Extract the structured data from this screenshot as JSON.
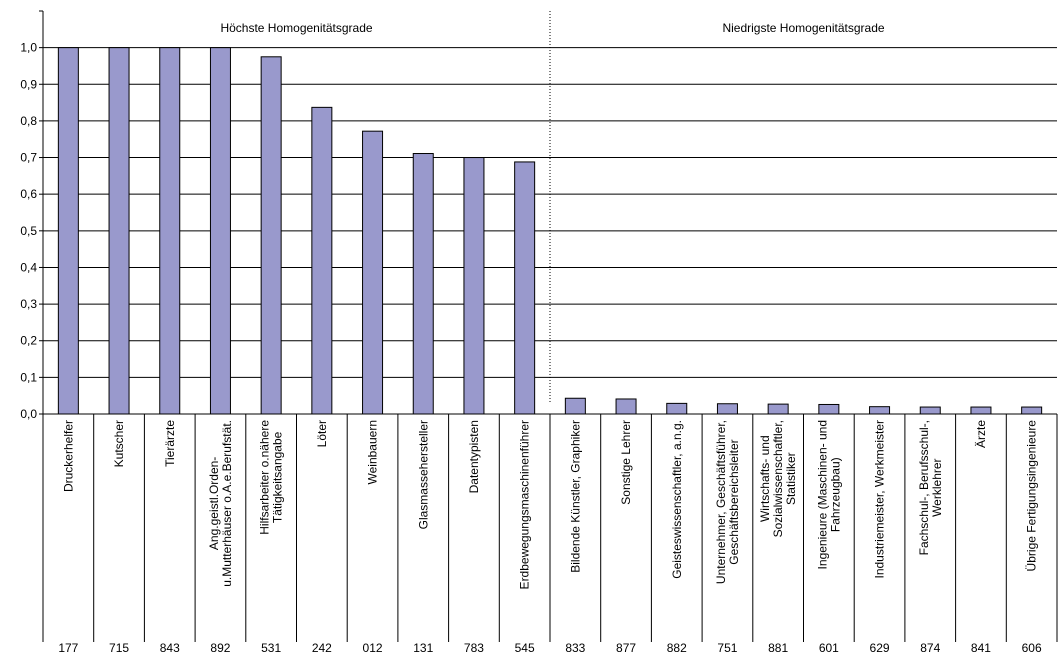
{
  "chart_data": {
    "type": "bar",
    "ylim": [
      0,
      1.1
    ],
    "yticks": [
      "0,0",
      "0,1",
      "0,2",
      "0,3",
      "0,4",
      "0,5",
      "0,6",
      "0,7",
      "0,8",
      "0,9",
      "1,0"
    ],
    "ytick_values": [
      0,
      0.1,
      0.2,
      0.3,
      0.4,
      0.5,
      0.6,
      0.7,
      0.8,
      0.9,
      1.0
    ],
    "grid": true,
    "bar_color": "#9999cc",
    "sections": [
      {
        "label": "Höchste Homogenitätsgrade",
        "start_index": 0,
        "end_index": 9
      },
      {
        "label": "Niedrigste Homogenitätsgrade",
        "start_index": 10,
        "end_index": 19
      }
    ],
    "categories": [
      [
        "Druckerhelfer"
      ],
      [
        "Kutscher"
      ],
      [
        "Tierärzte"
      ],
      [
        "Ang.geistl.Orden-",
        "u.Mutterhäuser o.A.e.Berufstät."
      ],
      [
        "Hilfsarbeiter o.nähere",
        "Tätigkeitsangabe"
      ],
      [
        "Löter"
      ],
      [
        "Weinbauern"
      ],
      [
        "Glasmassehersteller"
      ],
      [
        "Datentypisten"
      ],
      [
        "Erdbewegungsmaschinenführer"
      ],
      [
        "Bildende Künstler, Graphiker"
      ],
      [
        "Sonstige Lehrer"
      ],
      [
        "Geisteswissenschaftler, a.n.g."
      ],
      [
        "Unternehmer, Geschäftsführer,",
        "Geschäftsbereichsleiter"
      ],
      [
        "Wirtschafts- und",
        "Sozialwissenschaftler,",
        "Statistiker"
      ],
      [
        "Ingenieure (Maschinen- und",
        "Fahrzeugbau)"
      ],
      [
        "Industriemeister, Werkmeister"
      ],
      [
        "Fachschul-, Berufsschul-,",
        "Werklehrer"
      ],
      [
        "Ärzte"
      ],
      [
        "Übrige Fertigungsingenieure"
      ]
    ],
    "codes": [
      "177",
      "715",
      "843",
      "892",
      "531",
      "242",
      "012",
      "131",
      "783",
      "545",
      "833",
      "877",
      "882",
      "751",
      "881",
      "601",
      "629",
      "874",
      "841",
      "606"
    ],
    "values": [
      1.0,
      1.0,
      1.0,
      1.0,
      0.975,
      0.837,
      0.772,
      0.711,
      0.7,
      0.688,
      0.043,
      0.041,
      0.029,
      0.028,
      0.027,
      0.026,
      0.02,
      0.019,
      0.019,
      0.019
    ]
  }
}
